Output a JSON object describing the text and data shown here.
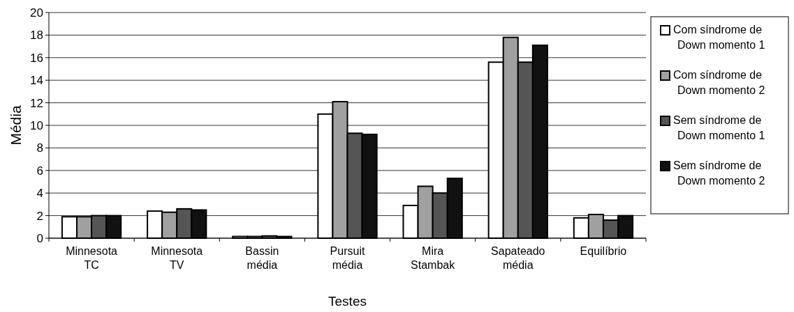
{
  "chart_data": {
    "type": "bar",
    "xlabel": "Testes",
    "ylabel": "Média",
    "categories": [
      "Minnesota TC",
      "Minnesota TV",
      "Bassin média",
      "Pursuit média",
      "Mira Stambak",
      "Sapateado média",
      "Equilíbrio"
    ],
    "series": [
      {
        "name": "Com síndrome de Down momento 1",
        "color": "#ffffff",
        "values": [
          1.9,
          2.4,
          0.15,
          11.0,
          2.9,
          15.6,
          1.8
        ]
      },
      {
        "name": "Com síndrome de Down momento 2",
        "color": "#a0a0a0",
        "values": [
          1.9,
          2.3,
          0.15,
          12.1,
          4.6,
          17.8,
          2.1
        ]
      },
      {
        "name": "Sem síndrome de Down momento 1",
        "color": "#555555",
        "values": [
          2.0,
          2.6,
          0.2,
          9.3,
          4.0,
          15.6,
          1.6
        ]
      },
      {
        "name": "Sem síndrome de Down momento 2",
        "color": "#111111",
        "values": [
          2.0,
          2.5,
          0.15,
          9.2,
          5.3,
          17.1,
          2.0
        ]
      }
    ],
    "ylim": [
      0,
      20
    ],
    "yticks": [
      0,
      2,
      4,
      6,
      8,
      10,
      12,
      14,
      16,
      18,
      20
    ],
    "grid": "y",
    "legend": "right"
  }
}
